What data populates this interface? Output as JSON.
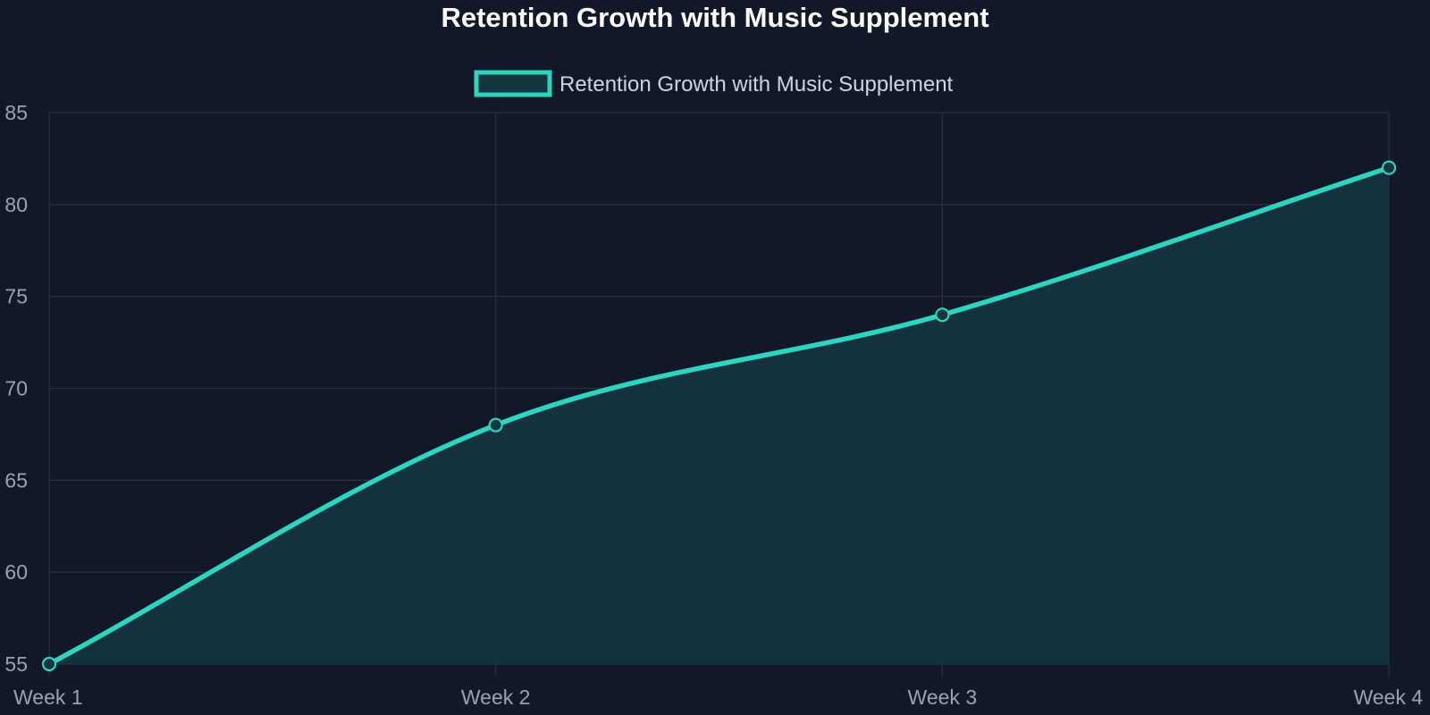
{
  "chart_data": {
    "type": "area",
    "title": "Retention Growth with Music Supplement",
    "categories": [
      "Week 1",
      "Week 2",
      "Week 3",
      "Week 4"
    ],
    "series": [
      {
        "name": "Retention Growth with Music Supplement",
        "values": [
          55,
          68,
          74,
          82
        ]
      }
    ],
    "ylim": [
      55,
      85
    ],
    "y_ticks": [
      55,
      60,
      65,
      70,
      75,
      80,
      85
    ],
    "grid": true,
    "legend_position": "top-center",
    "smooth_line": true,
    "point_markers": "hollow circle"
  },
  "colors": {
    "background": "#111827",
    "series_line": "#2dd4bf",
    "series_fill": "#15353f",
    "grid_line": "#263040",
    "title_text": "#ffffff",
    "tick_text": "#9ca3af",
    "legend_text": "#d1d5db"
  }
}
